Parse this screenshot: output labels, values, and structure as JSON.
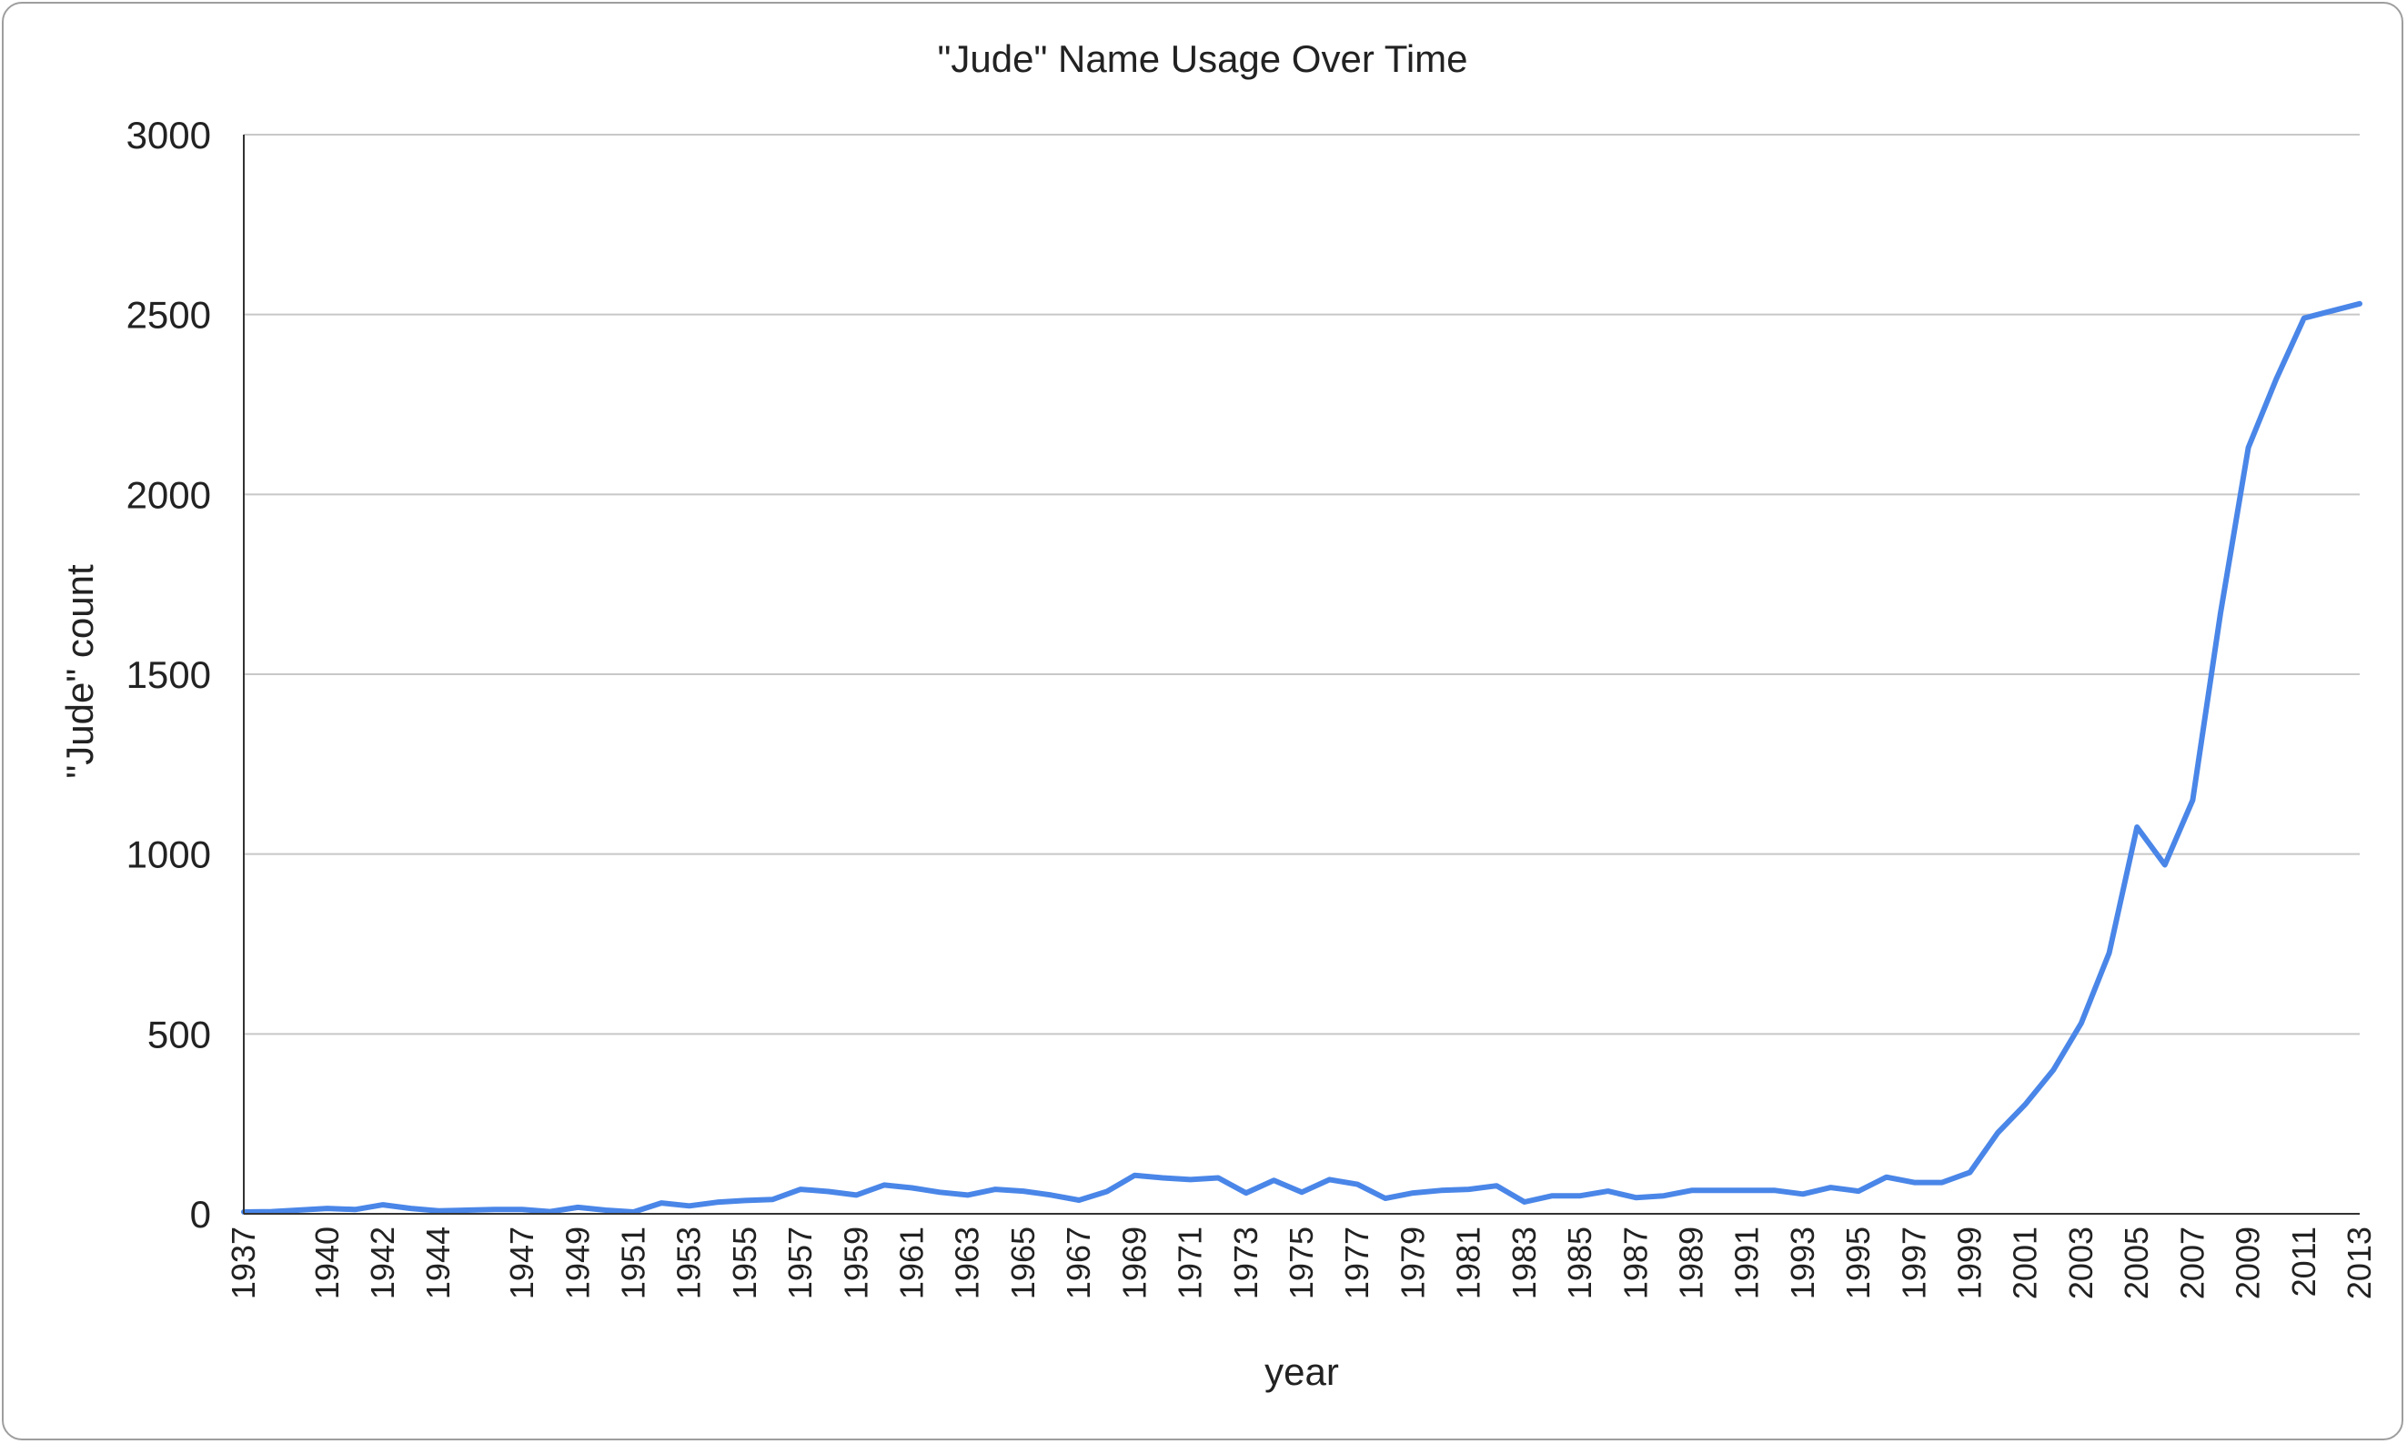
{
  "chart_data": {
    "type": "line",
    "title": "\"Jude\" Name Usage Over Time",
    "xlabel": "year",
    "ylabel": "\"Jude\" count",
    "ylim": [
      0,
      3000
    ],
    "yticks": [
      0,
      500,
      1000,
      1500,
      2000,
      2500,
      3000
    ],
    "x_tick_labels": [
      "1937",
      "1940",
      "1942",
      "1944",
      "1947",
      "1949",
      "1951",
      "1953",
      "1955",
      "1957",
      "1959",
      "1961",
      "1963",
      "1965",
      "1967",
      "1969",
      "1971",
      "1973",
      "1975",
      "1977",
      "1979",
      "1981",
      "1983",
      "1985",
      "1987",
      "1989",
      "1991",
      "1993",
      "1995",
      "1997",
      "1999",
      "2001",
      "2003",
      "2005",
      "2007",
      "2009",
      "2011",
      "2013"
    ],
    "grid": true,
    "legend": "none",
    "line_color": "#4a86e8",
    "series": [
      {
        "x": [
          "1937",
          "1938",
          "1940",
          "1941",
          "1942",
          "1943",
          "1944",
          "1946",
          "1947",
          "1948",
          "1949",
          "1950",
          "1951",
          "1952",
          "1953",
          "1954",
          "1955",
          "1956",
          "1957",
          "1958",
          "1959",
          "1960",
          "1961",
          "1962",
          "1963",
          "1964",
          "1965",
          "1966",
          "1967",
          "1968",
          "1969",
          "1970",
          "1971",
          "1972",
          "1973",
          "1974",
          "1975",
          "1976",
          "1977",
          "1978",
          "1979",
          "1980",
          "1981",
          "1982",
          "1983",
          "1984",
          "1985",
          "1986",
          "1987",
          "1988",
          "1989",
          "1990",
          "1991",
          "1992",
          "1993",
          "1994",
          "1995",
          "1996",
          "1997",
          "1998",
          "1999",
          "2000",
          "2001",
          "2002",
          "2003",
          "2004",
          "2005",
          "2006",
          "2007",
          "2008",
          "2009",
          "2010",
          "2011",
          "2012",
          "2013"
        ],
        "values": [
          5,
          6,
          15,
          12,
          25,
          15,
          8,
          12,
          12,
          6,
          18,
          10,
          5,
          30,
          22,
          32,
          37,
          40,
          68,
          62,
          52,
          80,
          72,
          60,
          52,
          68,
          63,
          52,
          38,
          62,
          107,
          100,
          95,
          100,
          58,
          93,
          60,
          95,
          82,
          43,
          58,
          65,
          68,
          78,
          33,
          50,
          50,
          63,
          45,
          50,
          65,
          65,
          65,
          65,
          55,
          73,
          63,
          102,
          87,
          87,
          115,
          225,
          305,
          400,
          530,
          725,
          1075,
          970,
          1150,
          1670,
          2130,
          2320,
          2490,
          2510,
          2530
        ]
      }
    ]
  }
}
